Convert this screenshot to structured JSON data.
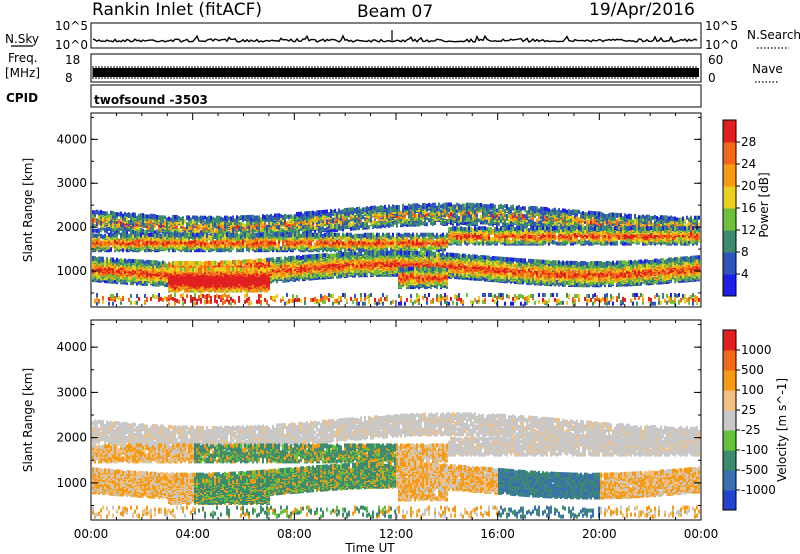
{
  "header": {
    "station": "Rankin Inlet (fitACF)",
    "beam": "Beam 07",
    "date": "19/Apr/2016"
  },
  "strip_labels": {
    "nsky": "N.Sky",
    "nsearch": "N.Search",
    "nsky_top": "10^5",
    "nsky_bottom": "10^0",
    "freq_line1": "Freq.",
    "freq_line2": "[MHz]",
    "freq_top": "18",
    "freq_bottom": "8",
    "nave": "Nave",
    "nave_top": "60",
    "nave_bottom": "0",
    "cpid": "CPID",
    "cpid_value": "twofsound  -3503"
  },
  "chart_data": [
    {
      "type": "heatmap",
      "title": "",
      "ylabel": "Slant Range [km]",
      "ylim": [
        180,
        4600
      ],
      "yticks": [
        1000,
        2000,
        3000,
        4000
      ],
      "xlabel": "",
      "xticks": [
        "00:00",
        "04:00",
        "08:00",
        "12:00",
        "16:00",
        "20:00",
        "00:00"
      ],
      "colorbar": {
        "label": "Power [dB]",
        "levels": [
          "4",
          "8",
          "12",
          "16",
          "20",
          "24",
          "28"
        ],
        "colors": [
          "#1e1ee6",
          "#2f55b8",
          "#3e8a6e",
          "#6fbf3c",
          "#e8d020",
          "#f59a12",
          "#f26818",
          "#e02020"
        ]
      }
    },
    {
      "type": "heatmap",
      "title": "",
      "ylabel": "Slant Range [km]",
      "ylim": [
        180,
        4600
      ],
      "yticks": [
        1000,
        2000,
        3000,
        4000
      ],
      "xlabel": "Time UT",
      "xticks": [
        "00:00",
        "04:00",
        "08:00",
        "12:00",
        "16:00",
        "20:00",
        "00:00"
      ],
      "colorbar": {
        "label": "Velocity [m s^-1]",
        "levels": [
          "1000",
          "500",
          "100",
          "25",
          "-25",
          "-100",
          "-500",
          "-1000"
        ],
        "colors": [
          "#2244cc",
          "#3a6fb0",
          "#3e8a6e",
          "#66c23a",
          "#c8c8c8",
          "#f2c080",
          "#f59a12",
          "#f26818",
          "#e02020"
        ]
      }
    }
  ]
}
